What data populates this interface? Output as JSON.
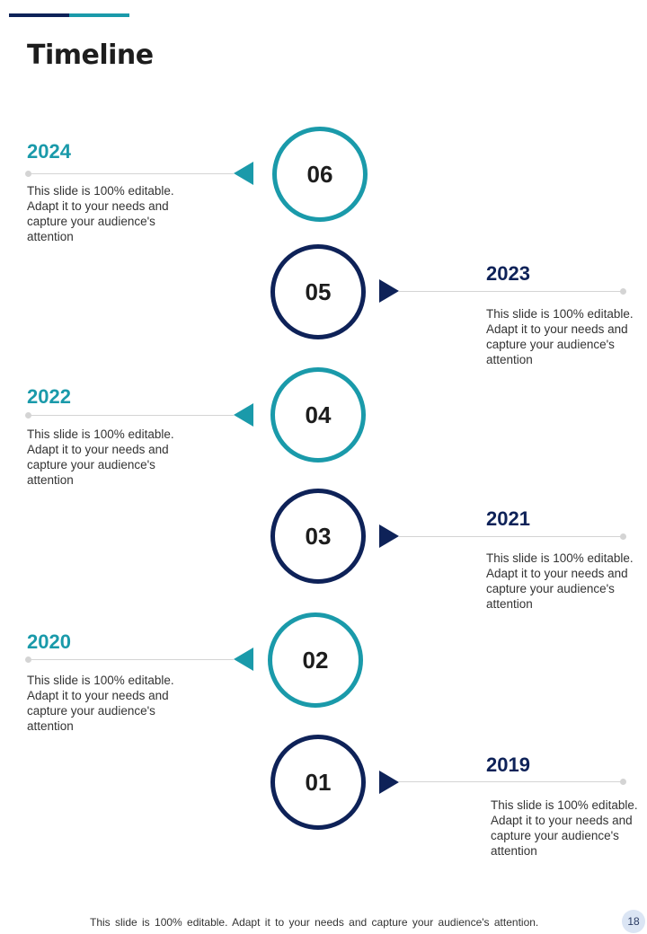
{
  "title": "Timeline",
  "colors": {
    "teal": "#1a9aaa",
    "navy": "#0e2258"
  },
  "milestones": [
    {
      "number": "06",
      "year": "2024",
      "desc": "This slide is 100% editable. Adapt it to your needs and capture your audience's attention"
    },
    {
      "number": "05",
      "year": "2023",
      "desc": "This slide is 100% editable. Adapt it to your needs and capture your audience's attention"
    },
    {
      "number": "04",
      "year": "2022",
      "desc": "This slide is 100% editable. Adapt it to your needs and capture your audience's attention"
    },
    {
      "number": "03",
      "year": "2021",
      "desc": "This slide is 100% editable. Adapt it to your needs and capture your audience's attention"
    },
    {
      "number": "02",
      "year": "2020",
      "desc": "This slide is 100% editable. Adapt it to your needs and capture your audience's attention"
    },
    {
      "number": "01",
      "year": "2019",
      "desc": "This slide is 100% editable. Adapt it to your needs and capture your audience's attention"
    }
  ],
  "footer": "This slide is 100% editable. Adapt it to your needs and capture your audience's attention.",
  "page_number": "18"
}
